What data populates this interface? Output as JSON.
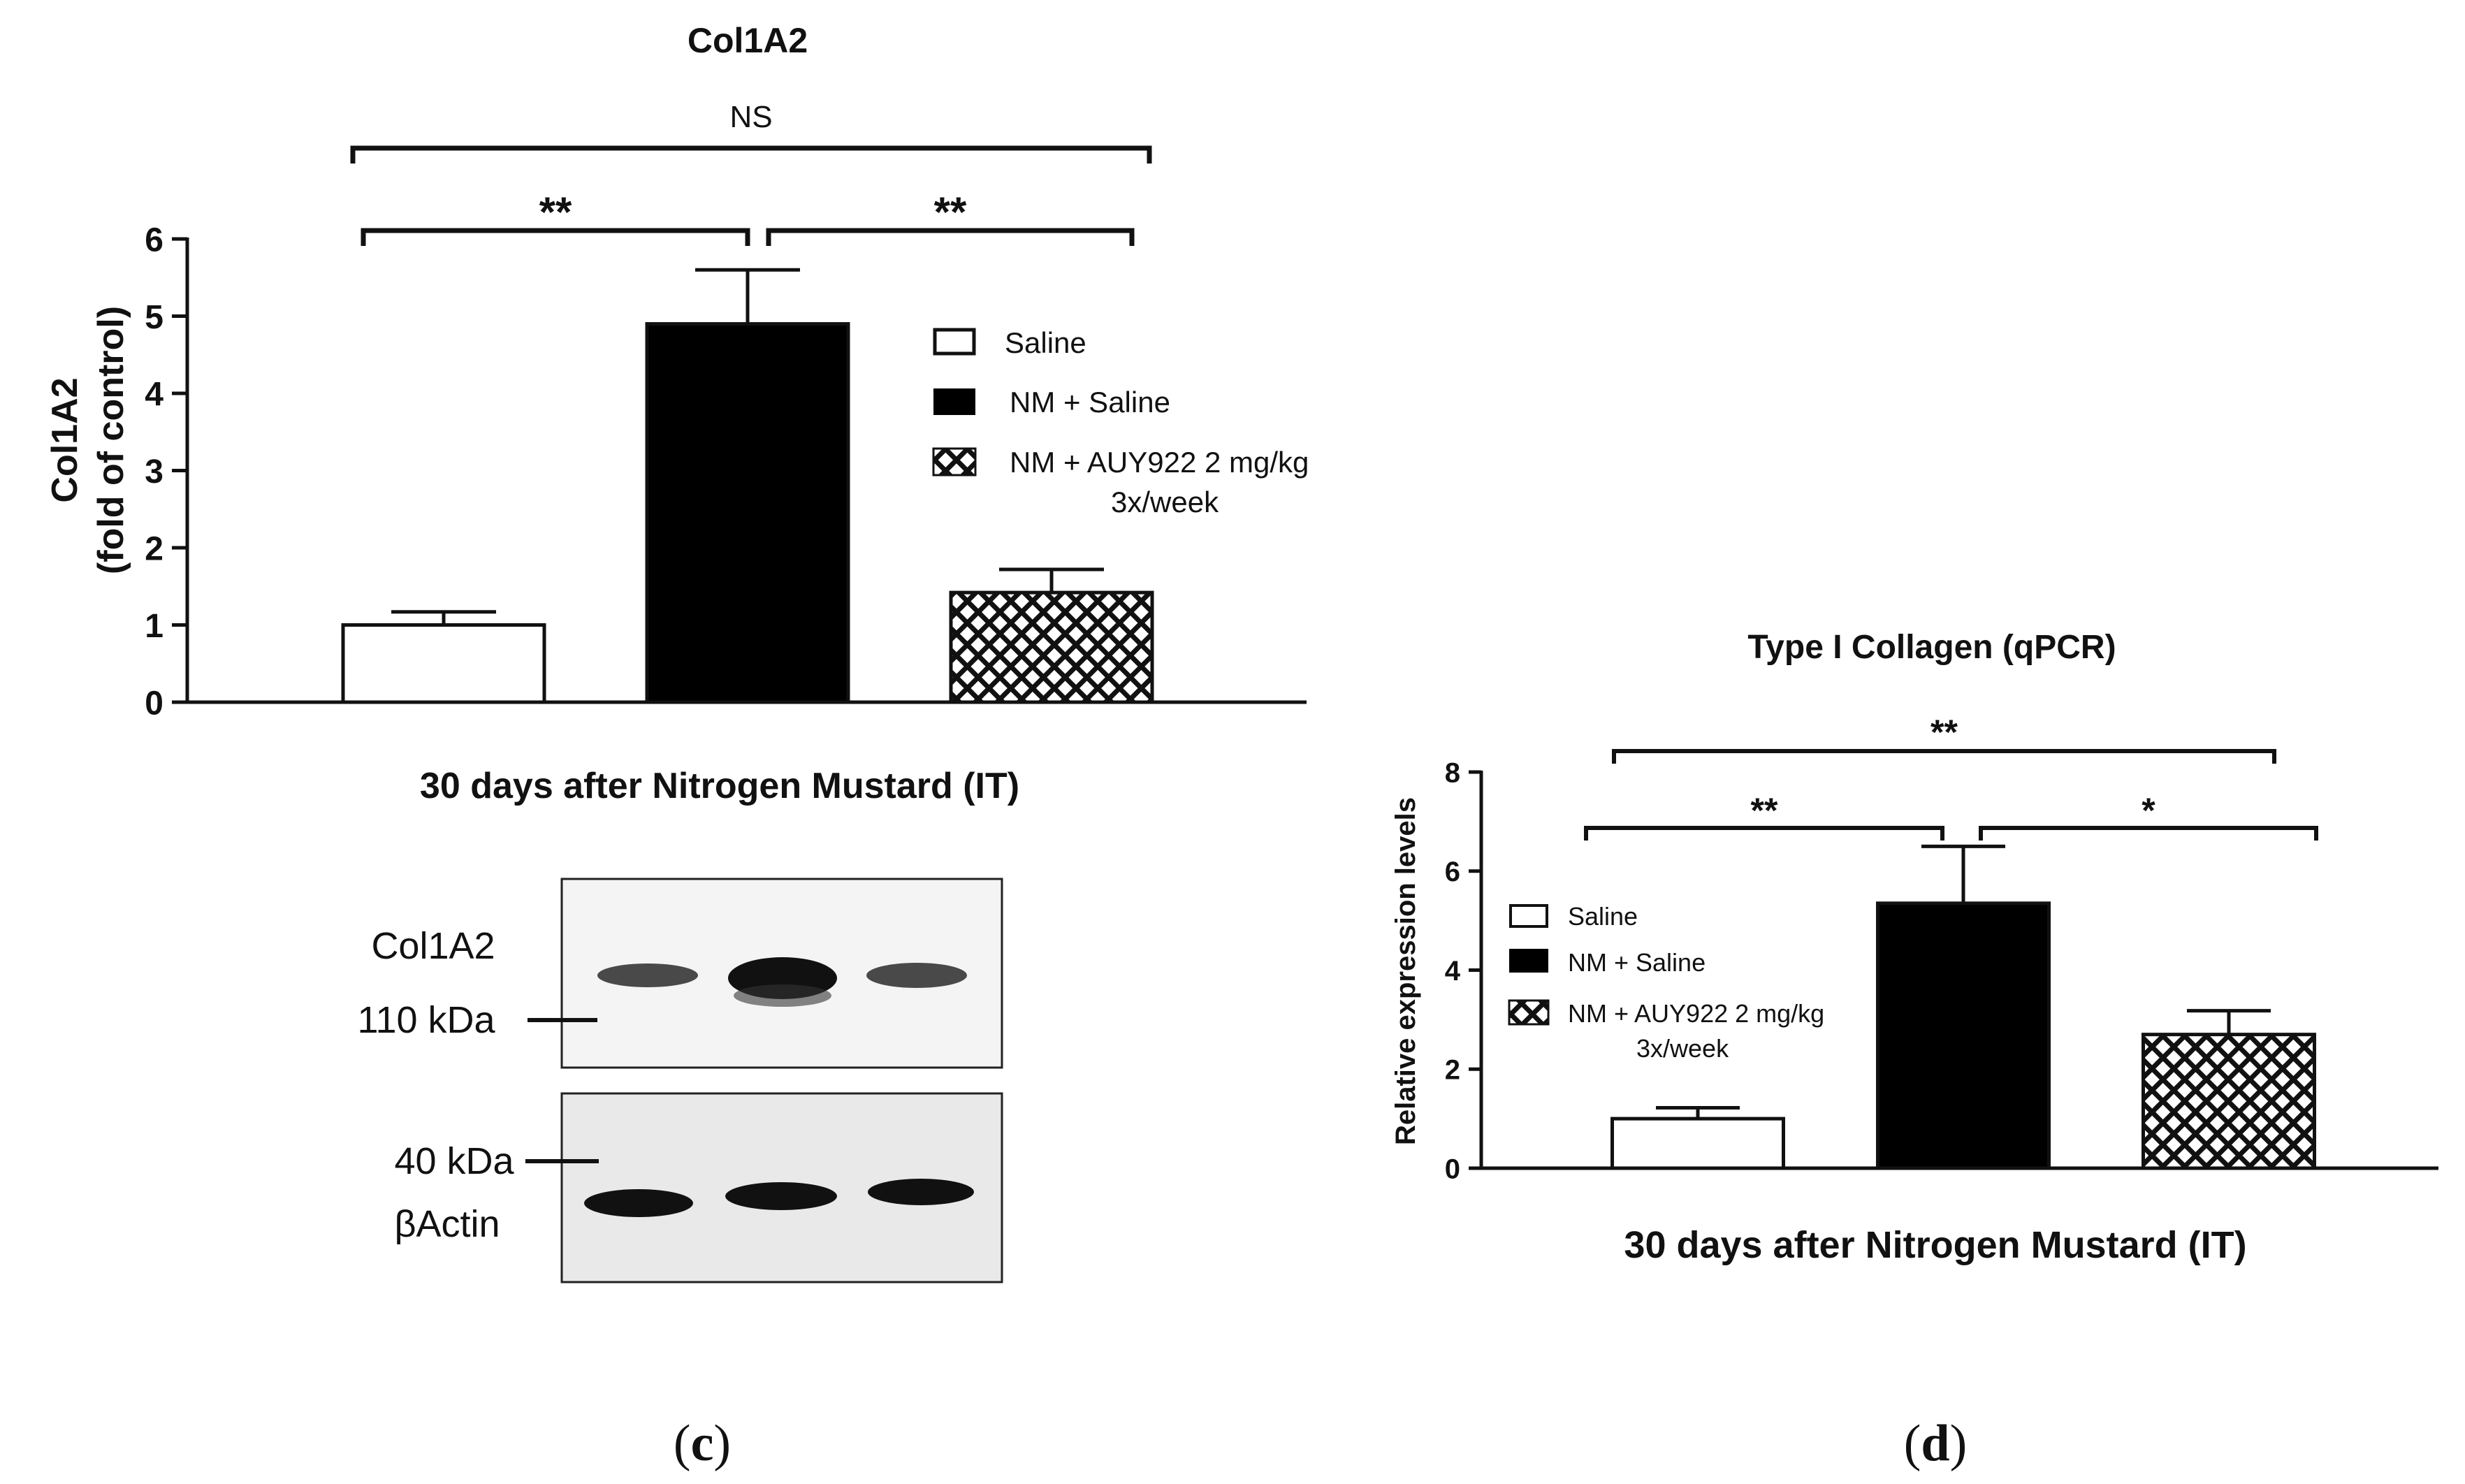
{
  "panel_c": {
    "letter": "c",
    "blot": {
      "top_label": "Col1A2",
      "top_marker": "110 kDa",
      "bottom_marker": "40 kDa",
      "bottom_label": "βActin"
    }
  },
  "panel_d": {
    "letter": "d"
  },
  "legend": {
    "saline": "Saline",
    "nm_saline": "NM + Saline",
    "nm_auy_c": "NM + AUY922  2 mg/kg",
    "nm_auy_d": "NM + AUY922 2 mg/kg",
    "nm_auy_sub": "3x/week"
  },
  "colors": {
    "saline": "#ffffff",
    "nm_saline": "#000000",
    "nm_auy": "crosshatch",
    "axis": "#111111"
  },
  "chart_data": [
    {
      "type": "bar",
      "title": "Col1A2",
      "xlabel": "30 days after Nitrogen Mustard  (IT)",
      "ylabel": "Col1A2",
      "ylabel2": "(fold of control)",
      "categories": [
        "Saline",
        "NM + Saline",
        "NM + AUY922  2 mg/kg 3x/week"
      ],
      "values": [
        1.0,
        4.9,
        1.42
      ],
      "errors": [
        0.17,
        0.7,
        0.3
      ],
      "ylim": [
        0,
        6
      ],
      "yticks": [
        "0",
        "1",
        "2",
        "3",
        "4",
        "5",
        "6"
      ],
      "legend_position": "right",
      "significance": [
        {
          "from": 0,
          "to": 1,
          "label": "**"
        },
        {
          "from": 1,
          "to": 2,
          "label": "**"
        },
        {
          "from": 0,
          "to": 2,
          "label": "NS"
        }
      ]
    },
    {
      "type": "bar",
      "title": "Type I Collagen (qPCR)",
      "xlabel": "30 days after Nitrogen Mustard (IT)",
      "ylabel": "Relative expression levels",
      "categories": [
        "Saline",
        "NM + Saline",
        "NM + AUY922 2 mg/kg 3x/week"
      ],
      "values": [
        1.0,
        5.35,
        2.7
      ],
      "errors": [
        0.22,
        1.15,
        0.48
      ],
      "ylim": [
        0,
        8
      ],
      "yticks": [
        "0",
        "2",
        "4",
        "6",
        "8"
      ],
      "legend_position": "top-left",
      "significance": [
        {
          "from": 0,
          "to": 1,
          "label": "**"
        },
        {
          "from": 1,
          "to": 2,
          "label": "*"
        },
        {
          "from": 0,
          "to": 2,
          "label": "**"
        }
      ]
    }
  ]
}
